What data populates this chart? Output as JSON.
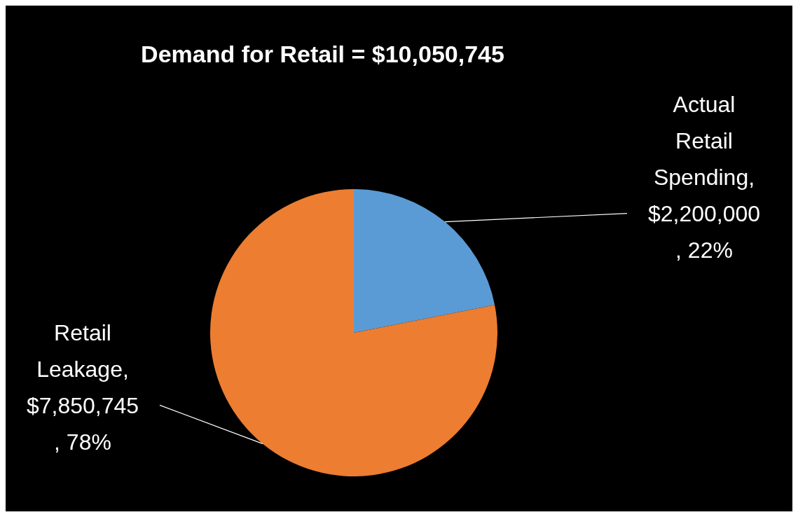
{
  "chart_data": {
    "type": "pie",
    "title": "Demand for Retail = $10,050,745",
    "categories": [
      "Actual Retail Spending",
      "Retail Leakage"
    ],
    "values": [
      2200000,
      7850745
    ],
    "colors": [
      "#5b9bd5",
      "#ed7d31"
    ],
    "value_labels": [
      ", $2,200,000, 22%",
      ", $7,850,745, 78%"
    ]
  }
}
